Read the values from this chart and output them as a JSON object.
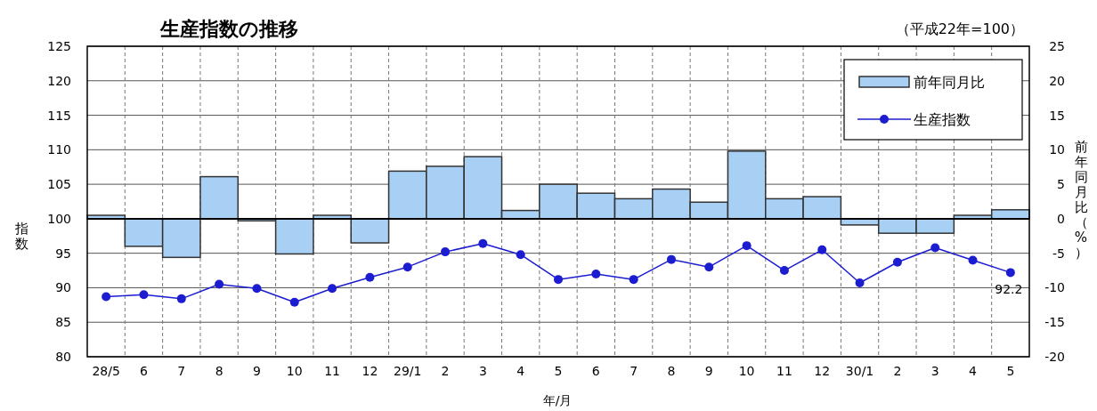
{
  "chart_data": {
    "type": "bar",
    "title": "生産指数の推移",
    "annotations": [
      "（平成22年=100）"
    ],
    "xlabel": "年/月",
    "ylabel": "指数",
    "y2label": "前年同月比（%）",
    "categories": [
      "28/5",
      "6",
      "7",
      "8",
      "9",
      "10",
      "11",
      "12",
      "29/1",
      "2",
      "3",
      "4",
      "5",
      "6",
      "7",
      "8",
      "9",
      "10",
      "11",
      "12",
      "30/1",
      "2",
      "3",
      "4",
      "5"
    ],
    "series": [
      {
        "name": "前年同月比",
        "type": "bar",
        "axis": "y2",
        "color": "#a8d0f5",
        "values": [
          0.5,
          -4.0,
          -5.6,
          6.1,
          -0.3,
          -5.1,
          0.5,
          -3.5,
          6.9,
          7.6,
          9.0,
          1.2,
          5.0,
          3.7,
          2.9,
          4.3,
          2.4,
          9.8,
          2.9,
          3.2,
          -0.9,
          -2.1,
          -2.1,
          0.5,
          1.3
        ]
      },
      {
        "name": "生産指数",
        "type": "line",
        "color": "#1c1cd0",
        "marker": "circle",
        "values": [
          88.7,
          89.0,
          88.4,
          90.5,
          89.9,
          87.9,
          89.9,
          91.5,
          93.0,
          95.2,
          96.4,
          94.8,
          91.2,
          92.0,
          91.2,
          94.1,
          93.0,
          96.1,
          92.5,
          95.5,
          90.7,
          93.7,
          95.8,
          94.0,
          92.2
        ],
        "value_labels": [
          null,
          null,
          null,
          null,
          null,
          null,
          null,
          null,
          null,
          null,
          null,
          null,
          null,
          null,
          null,
          null,
          null,
          null,
          null,
          null,
          null,
          null,
          null,
          null,
          "92.2"
        ]
      }
    ],
    "ylim": [
      80,
      125
    ],
    "yticks": [
      80,
      85,
      90,
      95,
      100,
      105,
      110,
      115,
      120,
      125
    ],
    "y2lim": [
      -20,
      25
    ],
    "y2ticks": [
      -20,
      -15,
      -10,
      -5,
      0,
      5,
      10,
      15,
      20,
      25
    ],
    "grid": true,
    "legend": "top right"
  }
}
